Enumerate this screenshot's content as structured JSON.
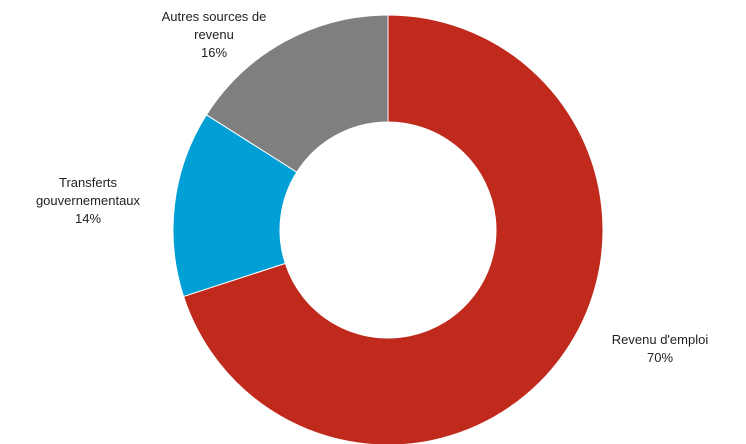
{
  "chart_data": {
    "type": "pie",
    "variant": "donut",
    "title": "",
    "start_angle": "12 o'clock, clockwise",
    "slices": [
      {
        "name": "Revenu d'emploi",
        "label_lines": [
          "Revenu d'emploi"
        ],
        "value": 70,
        "value_label": "70%",
        "color": "#bf2a1c"
      },
      {
        "name": "Transferts gouvernementaux",
        "label_lines": [
          "Transferts",
          "gouvernementaux"
        ],
        "value": 14,
        "value_label": "14%",
        "color": "#00a0d6"
      },
      {
        "name": "Autres sources de revenu",
        "label_lines": [
          "Autres sources de",
          "revenu"
        ],
        "value": 16,
        "value_label": "16%",
        "color": "#7f7f7f"
      }
    ],
    "slice_border_color": "#ffffff",
    "legend": "none"
  }
}
